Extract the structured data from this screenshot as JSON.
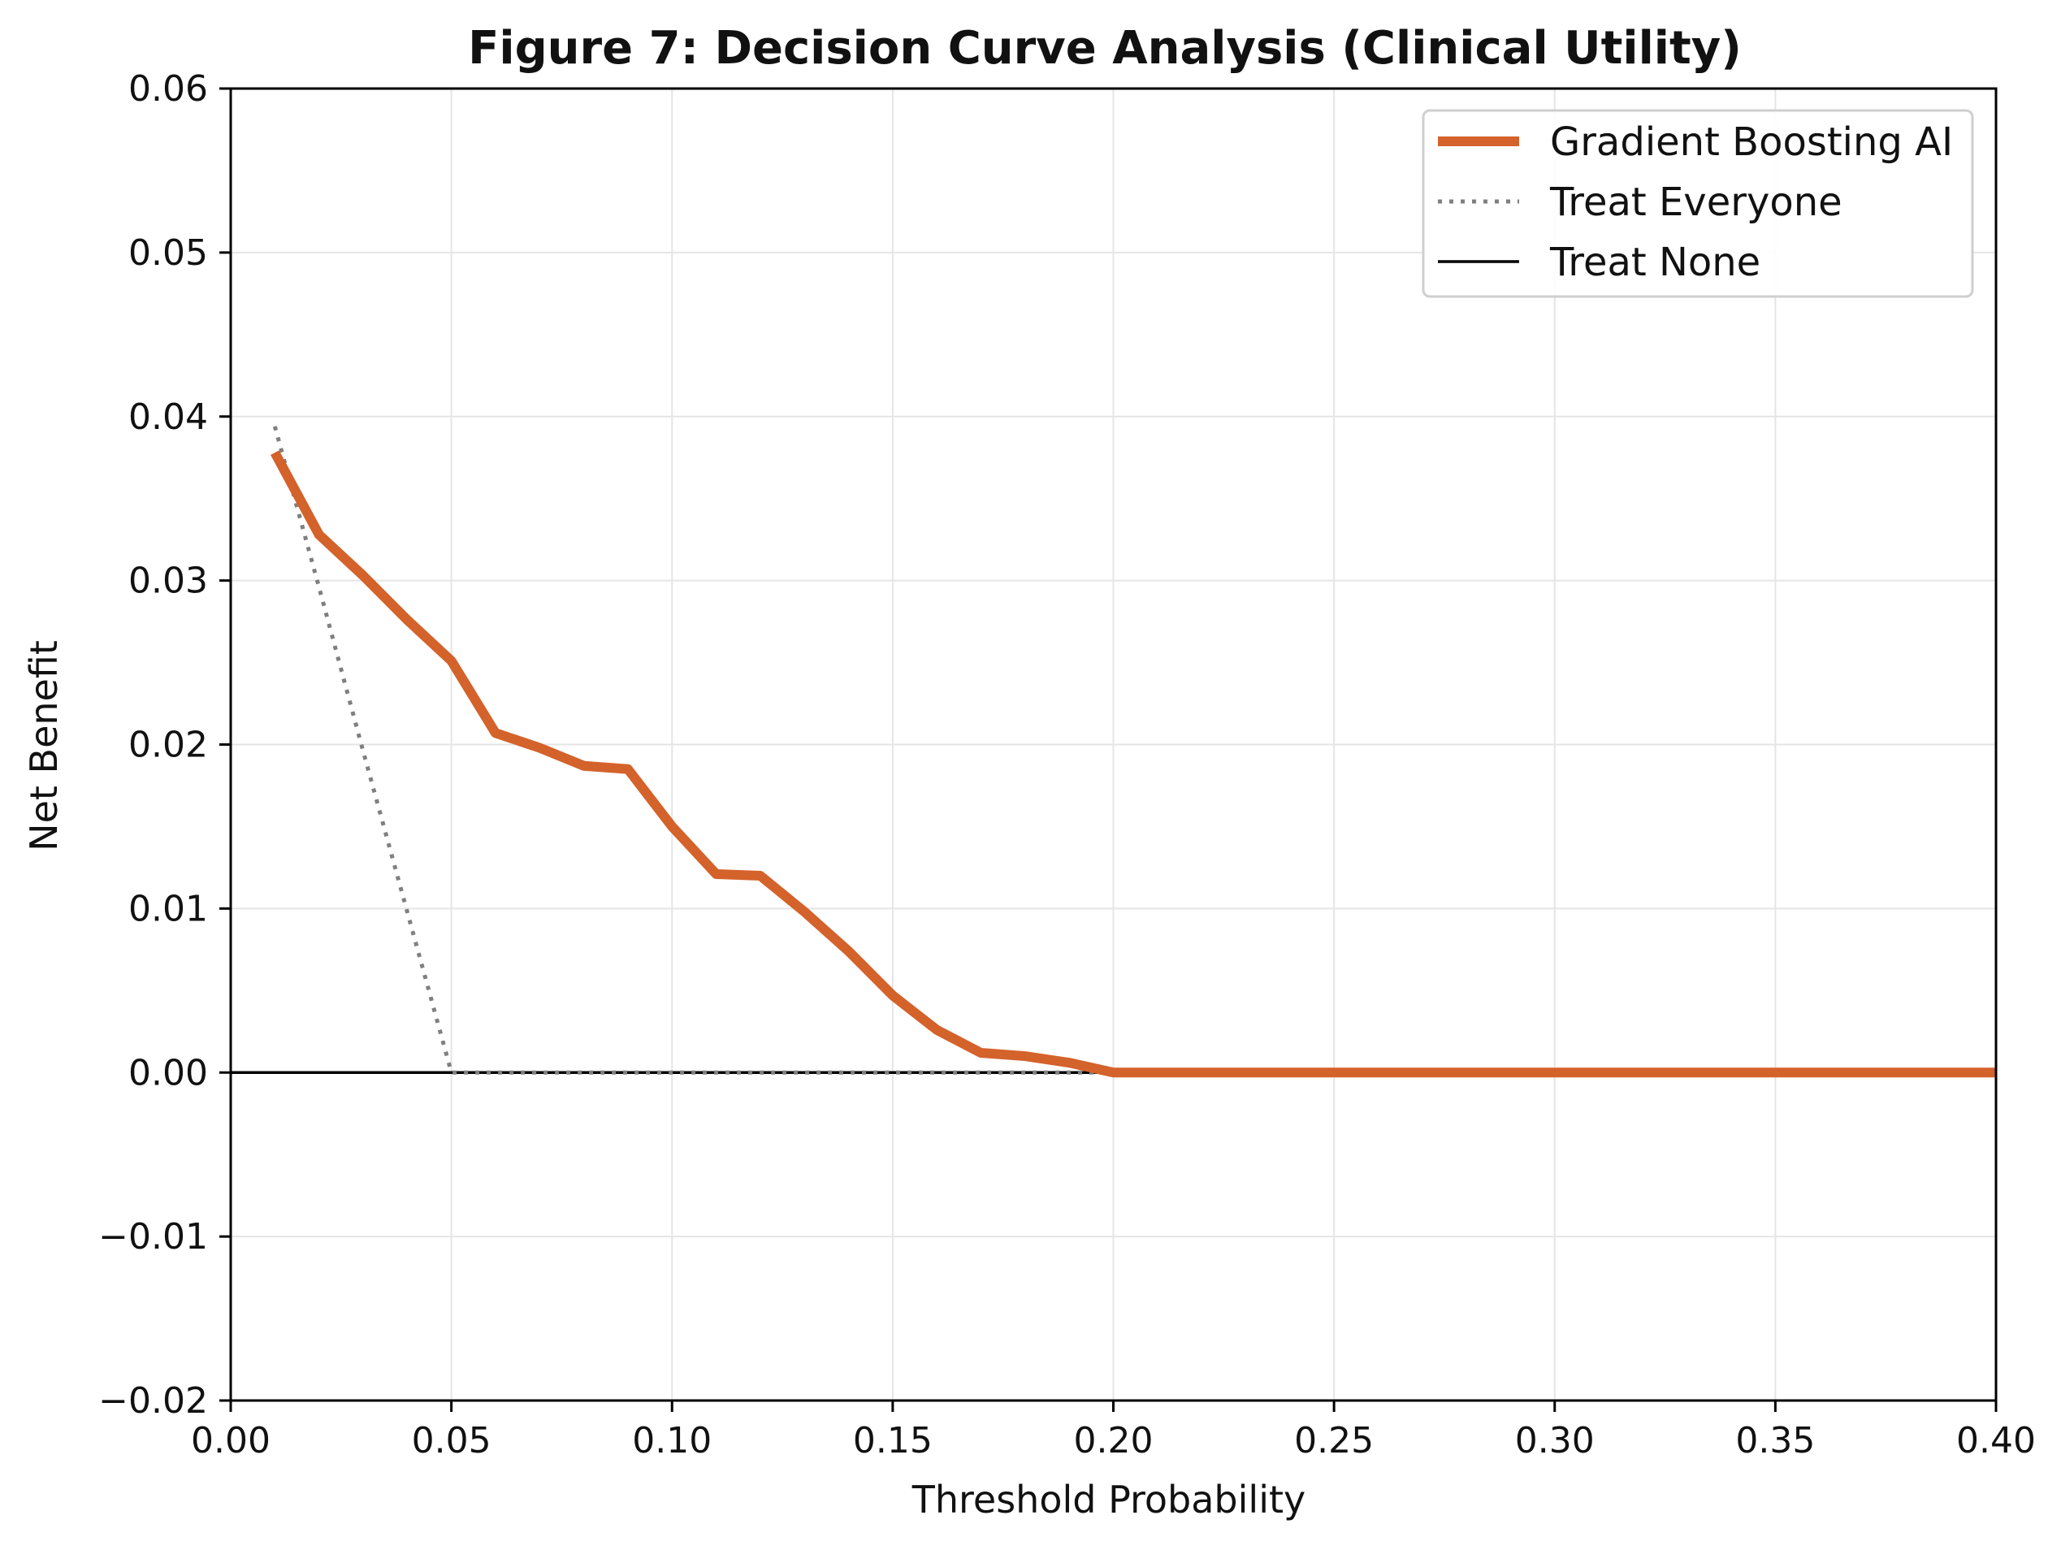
{
  "chart_data": {
    "type": "line",
    "title": "Figure 7: Decision Curve Analysis (Clinical Utility)",
    "xlabel": "Threshold Probability",
    "ylabel": "Net Benefit",
    "xlim": [
      0.0,
      0.4
    ],
    "ylim": [
      -0.02,
      0.06
    ],
    "xticks": [
      "0.00",
      "0.05",
      "0.10",
      "0.15",
      "0.20",
      "0.25",
      "0.30",
      "0.35",
      "0.40"
    ],
    "yticks": [
      "0.06",
      "0.05",
      "0.04",
      "0.03",
      "0.02",
      "0.01",
      "0.00",
      "−0.01",
      "−0.02"
    ],
    "grid": true,
    "legend_position": "top-right",
    "series": [
      {
        "name": "Gradient Boosting AI",
        "color": "#d4622b",
        "style": "solid-thick",
        "points": [
          [
            0.01,
            0.0378
          ],
          [
            0.02,
            0.0328
          ],
          [
            0.03,
            0.0303
          ],
          [
            0.04,
            0.0276
          ],
          [
            0.05,
            0.0251
          ],
          [
            0.06,
            0.0207
          ],
          [
            0.07,
            0.0198
          ],
          [
            0.08,
            0.0187
          ],
          [
            0.09,
            0.0185
          ],
          [
            0.1,
            0.015
          ],
          [
            0.11,
            0.0121
          ],
          [
            0.12,
            0.012
          ],
          [
            0.13,
            0.0098
          ],
          [
            0.14,
            0.0074
          ],
          [
            0.15,
            0.0047
          ],
          [
            0.16,
            0.0026
          ],
          [
            0.17,
            0.0012
          ],
          [
            0.18,
            0.001
          ],
          [
            0.19,
            0.0006
          ],
          [
            0.2,
            0.0
          ],
          [
            0.25,
            0.0
          ],
          [
            0.3,
            0.0
          ],
          [
            0.35,
            0.0
          ],
          [
            0.4,
            0.0
          ]
        ]
      },
      {
        "name": "Treat Everyone",
        "color": "#7f7f7f",
        "style": "dotted",
        "points": [
          [
            0.01,
            0.0394
          ],
          [
            0.02,
            0.0296
          ],
          [
            0.03,
            0.0196
          ],
          [
            0.04,
            0.0098
          ],
          [
            0.05,
            0.0
          ],
          [
            0.1,
            0.0
          ],
          [
            0.15,
            0.0
          ],
          [
            0.2,
            0.0
          ]
        ]
      },
      {
        "name": "Treat None",
        "color": "#000000",
        "style": "solid-thin",
        "points": [
          [
            0.0,
            0.0
          ],
          [
            0.4,
            0.0
          ]
        ]
      }
    ]
  }
}
